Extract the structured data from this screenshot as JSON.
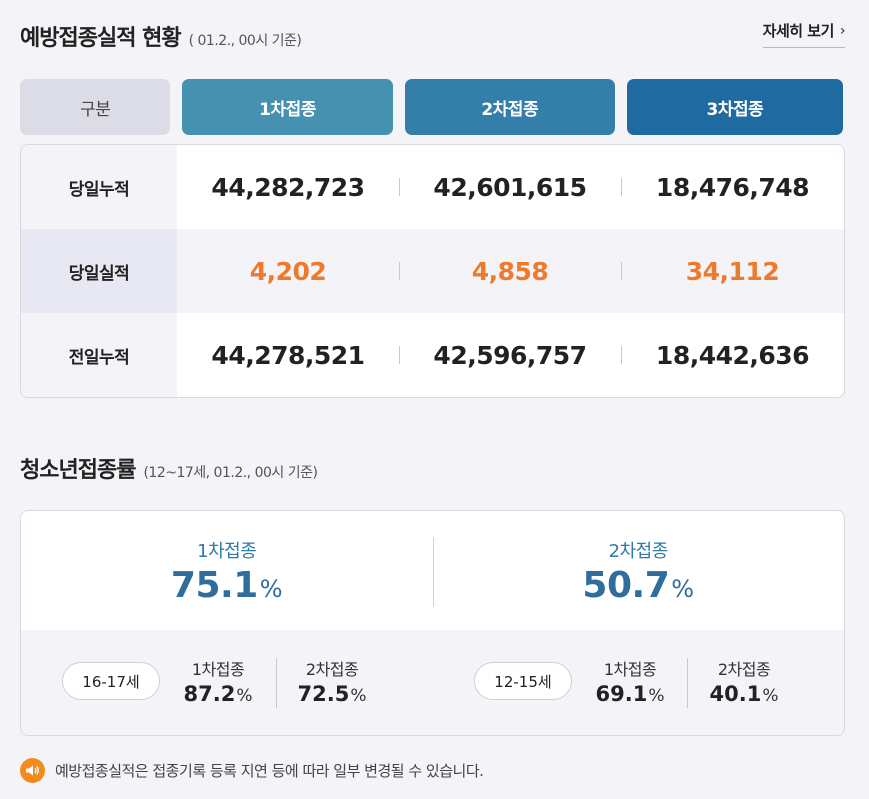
{
  "vaccination": {
    "title": "예방접종실적 현황",
    "subtitle": "( 01.2., 00시 기준)",
    "more_link": "자세히 보기",
    "tabs": [
      "구분",
      "1차접종",
      "2차접종",
      "3차접종"
    ],
    "rows": [
      {
        "label": "당일누적",
        "values": [
          "44,282,723",
          "42,601,615",
          "18,476,748"
        ]
      },
      {
        "label": "당일실적",
        "values": [
          "4,202",
          "4,858",
          "34,112"
        ]
      },
      {
        "label": "전일누적",
        "values": [
          "44,278,521",
          "42,596,757",
          "18,442,636"
        ]
      }
    ]
  },
  "youth": {
    "title": "청소년접종률",
    "subtitle": "(12~17세, 01.2., 00시 기준)",
    "summary": [
      {
        "label": "1차접종",
        "value": "75.1",
        "unit": "%"
      },
      {
        "label": "2차접종",
        "value": "50.7",
        "unit": "%"
      }
    ],
    "groups": [
      {
        "age": "16-17세",
        "stats": [
          {
            "label": "1차접종",
            "value": "87.2",
            "unit": "%"
          },
          {
            "label": "2차접종",
            "value": "72.5",
            "unit": "%"
          }
        ]
      },
      {
        "age": "12-15세",
        "stats": [
          {
            "label": "1차접종",
            "value": "69.1",
            "unit": "%"
          },
          {
            "label": "2차접종",
            "value": "40.1",
            "unit": "%"
          }
        ]
      }
    ]
  },
  "notice": {
    "icon": "speaker-icon",
    "icon_color": "#f28c1e",
    "text": "예방접종실적은 접종기록 등록 지연 등에 따라 일부 변경될 수 있습니다."
  },
  "colors": {
    "highlight": "#ee7a2b",
    "tab_1": "#4690b0",
    "tab_2": "#347eaa",
    "tab_3": "#1f6aa0",
    "rate": "#2e6d9c"
  }
}
